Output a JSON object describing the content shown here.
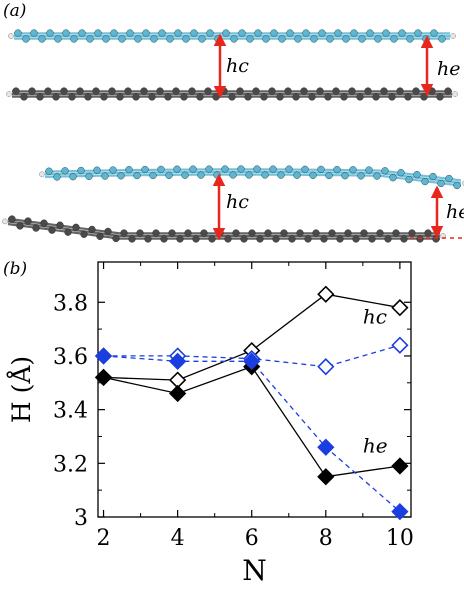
{
  "panel_a": {
    "label": "(a)",
    "top_model": {
      "label_center": "hc",
      "label_edge": "he"
    },
    "bottom_model": {
      "label_center": "hc",
      "label_edge": "he"
    },
    "colors": {
      "top_layer": "#5bb7d3",
      "bottom_layer": "#4a4a4a",
      "arrow": "#e8261c",
      "hydrogen": "#e6e6e6"
    }
  },
  "panel_b": {
    "label": "(b)"
  },
  "chart_data": {
    "type": "line",
    "xlabel": "N",
    "ylabel": "H (Å)",
    "x": [
      2,
      4,
      6,
      8,
      10
    ],
    "xlim": [
      1.85,
      10.3
    ],
    "ylim": [
      3.0,
      3.95
    ],
    "xticks": [
      "2",
      "4",
      "6",
      "8",
      "10"
    ],
    "yticks": [
      "3",
      "3.2",
      "3.4",
      "3.6",
      "3.8"
    ],
    "grid": false,
    "series": [
      {
        "name": "",
        "group": "black",
        "marker": "open",
        "line": "solid",
        "color": "#000000",
        "values": [
          3.52,
          3.51,
          3.62,
          3.83,
          3.78
        ]
      },
      {
        "name": "",
        "group": "black",
        "marker": "filled",
        "line": "solid",
        "color": "#000000",
        "values": [
          3.52,
          3.46,
          3.56,
          3.15,
          3.19
        ]
      },
      {
        "name": "",
        "group": "blue",
        "marker": "open",
        "line": "dashed",
        "color": "#1a3ee0",
        "values": [
          3.6,
          3.6,
          3.59,
          3.56,
          3.64
        ]
      },
      {
        "name": "",
        "group": "blue",
        "marker": "filled",
        "line": "dashed",
        "color": "#1a3ee0",
        "values": [
          3.6,
          3.58,
          3.58,
          3.26,
          3.02
        ]
      }
    ],
    "annotations": [
      {
        "text": "hc",
        "x": 9.0,
        "y": 3.72
      },
      {
        "text": "he",
        "x": 9.0,
        "y": 3.24
      }
    ]
  }
}
